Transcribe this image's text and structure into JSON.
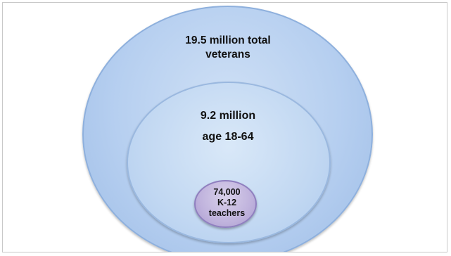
{
  "diagram": {
    "outer": {
      "line1": "19.5 million total",
      "line2": "veterans"
    },
    "middle": {
      "line1": "9.2 million",
      "line2": "age 18-64"
    },
    "inner": {
      "line1": "74,000",
      "line2": "K-12",
      "line3": "teachers"
    }
  },
  "colors": {
    "outer_fill": "#b6cff0",
    "middle_fill": "#c2d8f2",
    "inner_fill": "#c0b3dd",
    "frame_border": "#c9c9c9"
  }
}
